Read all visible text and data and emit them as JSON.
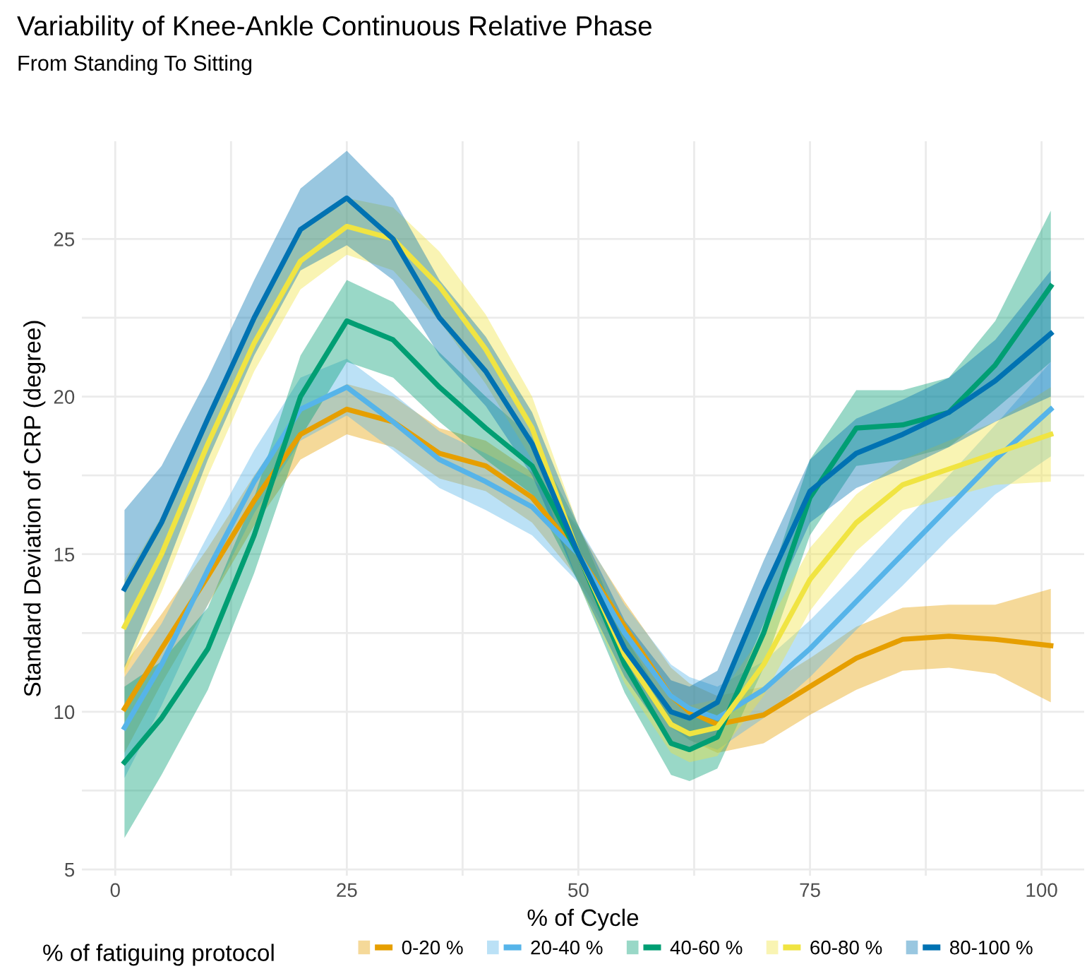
{
  "chart_data": {
    "type": "line",
    "title": "Variability of Knee-Ankle Continuous Relative Phase",
    "subtitle": "From Standing To Sitting",
    "xlabel": "% of Cycle",
    "ylabel": "Standard Deviation of CRP (degree)",
    "legend_title": "% of fatiguing protocol",
    "x": [
      1,
      5,
      10,
      15,
      20,
      25,
      30,
      35,
      40,
      45,
      50,
      55,
      60,
      62,
      65,
      70,
      75,
      80,
      85,
      90,
      95,
      101
    ],
    "series": [
      {
        "name": "0-20 %",
        "color": "#e69f00",
        "values": [
          10.1,
          12.0,
          14.3,
          16.7,
          18.8,
          19.6,
          19.2,
          18.2,
          17.8,
          16.8,
          15.0,
          12.7,
          10.5,
          10.0,
          9.6,
          9.9,
          10.8,
          11.7,
          12.3,
          12.4,
          12.3,
          12.1
        ],
        "lower": [
          8.7,
          10.9,
          13.4,
          15.9,
          18.0,
          18.8,
          18.4,
          17.4,
          17.0,
          16.0,
          14.2,
          11.9,
          9.6,
          9.1,
          8.7,
          9.0,
          9.9,
          10.7,
          11.3,
          11.4,
          11.2,
          10.3
        ],
        "upper": [
          11.5,
          13.1,
          15.2,
          17.5,
          19.6,
          20.4,
          20.0,
          19.0,
          18.6,
          17.6,
          15.8,
          13.5,
          11.4,
          10.9,
          10.5,
          10.8,
          11.7,
          12.7,
          13.3,
          13.4,
          13.4,
          13.9
        ]
      },
      {
        "name": "20-40 %",
        "color": "#56b4e9",
        "values": [
          9.5,
          11.5,
          14.5,
          17.3,
          19.6,
          20.3,
          19.2,
          18.0,
          17.3,
          16.5,
          15.0,
          12.5,
          10.5,
          10.1,
          9.8,
          10.7,
          12.0,
          13.5,
          15.0,
          16.5,
          18.0,
          19.6
        ],
        "lower": [
          7.9,
          10.2,
          13.4,
          16.3,
          18.6,
          19.4,
          18.3,
          17.1,
          16.4,
          15.6,
          14.1,
          11.6,
          9.5,
          9.1,
          8.8,
          9.8,
          11.1,
          12.6,
          14.0,
          15.5,
          16.9,
          18.1
        ],
        "upper": [
          11.1,
          12.8,
          15.6,
          18.3,
          20.6,
          21.2,
          20.1,
          18.9,
          18.2,
          17.4,
          15.9,
          13.4,
          11.5,
          11.1,
          10.8,
          11.6,
          12.9,
          14.4,
          16.0,
          17.5,
          19.1,
          21.1
        ]
      },
      {
        "name": "40-60 %",
        "color": "#009e73",
        "values": [
          8.4,
          9.8,
          12.0,
          15.6,
          20.0,
          22.4,
          21.8,
          20.3,
          19.0,
          17.8,
          15.0,
          11.5,
          9.0,
          8.8,
          9.2,
          12.5,
          16.8,
          19.0,
          19.1,
          19.5,
          21.0,
          23.5
        ],
        "lower": [
          6.0,
          8.0,
          10.7,
          14.4,
          18.7,
          21.1,
          20.6,
          19.2,
          18.0,
          16.9,
          14.1,
          10.6,
          8.0,
          7.8,
          8.2,
          11.4,
          15.6,
          17.8,
          18.0,
          18.4,
          19.6,
          21.1
        ],
        "upper": [
          10.8,
          11.6,
          13.3,
          16.8,
          21.3,
          23.7,
          23.0,
          21.4,
          20.0,
          18.7,
          15.9,
          12.4,
          10.0,
          9.8,
          10.2,
          13.6,
          18.0,
          20.2,
          20.2,
          20.6,
          22.4,
          25.9
        ]
      },
      {
        "name": "60-80 %",
        "color": "#f0e442",
        "values": [
          12.7,
          15.0,
          18.5,
          21.7,
          24.3,
          25.4,
          25.0,
          23.5,
          21.5,
          19.0,
          15.0,
          11.8,
          9.6,
          9.3,
          9.5,
          11.5,
          14.2,
          16.0,
          17.2,
          17.7,
          18.2,
          18.8
        ],
        "lower": [
          11.2,
          13.8,
          17.5,
          20.8,
          23.4,
          24.5,
          24.0,
          22.4,
          20.4,
          18.0,
          14.1,
          10.9,
          8.7,
          8.4,
          8.6,
          10.5,
          13.2,
          15.1,
          16.4,
          16.8,
          17.2,
          17.3
        ],
        "upper": [
          14.2,
          16.2,
          19.5,
          22.6,
          25.2,
          26.3,
          26.0,
          24.6,
          22.6,
          20.0,
          15.9,
          12.7,
          10.5,
          10.2,
          10.4,
          12.5,
          15.2,
          16.9,
          18.0,
          18.6,
          19.2,
          20.3
        ]
      },
      {
        "name": "80-100 %",
        "color": "#0072b2",
        "values": [
          13.9,
          16.0,
          19.3,
          22.5,
          25.3,
          26.3,
          25.0,
          22.5,
          20.8,
          18.5,
          15.0,
          12.0,
          10.0,
          9.8,
          10.3,
          13.8,
          17.0,
          18.2,
          18.8,
          19.5,
          20.5,
          22.0
        ],
        "lower": [
          11.4,
          14.2,
          18.0,
          21.3,
          24.0,
          24.8,
          23.7,
          21.3,
          19.7,
          17.5,
          14.1,
          11.1,
          9.0,
          8.8,
          9.3,
          12.8,
          16.0,
          17.1,
          17.7,
          18.4,
          19.2,
          20.0
        ],
        "upper": [
          16.4,
          17.8,
          20.6,
          23.7,
          26.6,
          27.8,
          26.3,
          23.7,
          21.9,
          19.5,
          15.9,
          12.9,
          11.0,
          10.8,
          11.3,
          14.8,
          18.0,
          19.3,
          19.9,
          20.6,
          21.8,
          24.0
        ]
      }
    ],
    "xlim": [
      -3.6,
      104.6
    ],
    "ylim": [
      4.8,
      28.1
    ],
    "xticks": [
      0,
      {
        "value": 12.5,
        "label": null
      },
      25,
      {
        "value": 37.5,
        "label": null
      },
      50,
      {
        "value": 62.5,
        "label": null
      },
      75,
      {
        "value": 87.5,
        "label": null
      },
      100
    ],
    "yticks": [
      5,
      {
        "value": 7.5,
        "label": null
      },
      10,
      {
        "value": 12.5,
        "label": null
      },
      15,
      {
        "value": 17.5,
        "label": null
      },
      20,
      {
        "value": 22.5,
        "label": null
      },
      25
    ],
    "grid": true,
    "legend": "bottom",
    "line_style": "solid",
    "marker": "none"
  }
}
